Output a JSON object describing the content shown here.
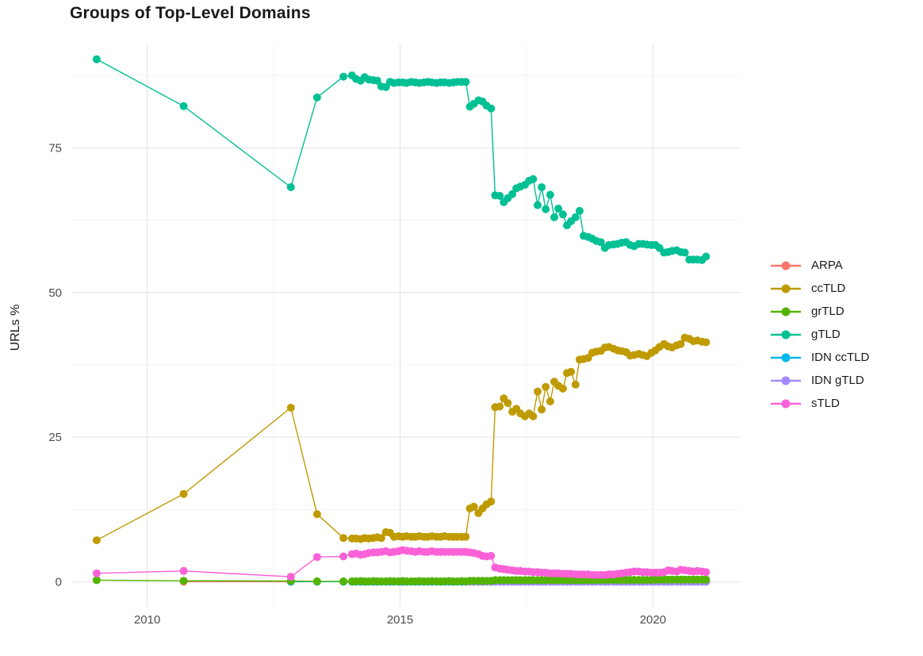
{
  "colors": {
    "background": "#FFFFFF",
    "grid_major": "#E8E8E8",
    "grid_minor": "#F3F3F3",
    "title_text": "#1A1A1A",
    "axis_text": "#4D4D4D",
    "legend_text": "#1A1A1A"
  },
  "chart_data": {
    "type": "line",
    "title": "Groups of Top-Level Domains",
    "xlabel": "",
    "ylabel": "URLs %",
    "xlim": [
      2008.5,
      2021.75
    ],
    "ylim": [
      -4.3,
      93
    ],
    "x_ticks": [
      2010,
      2015,
      2020
    ],
    "y_ticks": [
      0,
      25,
      50,
      75
    ],
    "x_minor": [
      2012.5,
      2017.5
    ],
    "y_minor": [
      12.5,
      37.5,
      62.5,
      87.5
    ],
    "grid": true,
    "legend_position": "right",
    "draw_order": [
      "ARPA",
      "IDN ccTLD",
      "IDN gTLD",
      "grTLD",
      "ccTLD",
      "gTLD",
      "sTLD"
    ],
    "x_common": [
      2009.0,
      2010.72,
      2012.84,
      2013.36,
      2013.88,
      2014.05,
      2014.13,
      2014.22,
      2014.3,
      2014.38,
      2014.47,
      2014.55,
      2014.63,
      2014.72,
      2014.8,
      2014.88,
      2014.97,
      2015.05,
      2015.13,
      2015.22,
      2015.3,
      2015.38,
      2015.47,
      2015.55,
      2015.63,
      2015.72,
      2015.8,
      2015.88,
      2015.97,
      2016.05,
      2016.13,
      2016.22,
      2016.3,
      2016.38,
      2016.46,
      2016.55,
      2016.63,
      2016.71,
      2016.8,
      2016.88,
      2016.97,
      2017.05,
      2017.13,
      2017.22,
      2017.3,
      2017.38,
      2017.47,
      2017.55,
      2017.63,
      2017.72,
      2017.8,
      2017.88,
      2017.97,
      2018.05,
      2018.13,
      2018.22,
      2018.3,
      2018.38,
      2018.47,
      2018.55,
      2018.63,
      2018.72,
      2018.8,
      2018.88,
      2018.97,
      2019.05,
      2019.13,
      2019.22,
      2019.3,
      2019.38,
      2019.47,
      2019.55,
      2019.63,
      2019.72,
      2019.8,
      2019.88,
      2019.97,
      2020.05,
      2020.13,
      2020.22,
      2020.3,
      2020.38,
      2020.47,
      2020.55,
      2020.63,
      2020.72,
      2020.8,
      2020.88,
      2020.97,
      2021.05
    ],
    "series": [
      {
        "name": "ARPA",
        "id": "arpa",
        "color": "#F8766D",
        "x_start_index": 1,
        "y_const": 0.05
      },
      {
        "name": "ccTLD",
        "id": "cctld",
        "color": "#BF9B00",
        "x_start_index": 0,
        "y": [
          7.2,
          15.2,
          30.1,
          11.7,
          7.6,
          7.5,
          7.5,
          7.4,
          7.6,
          7.5,
          7.6,
          7.7,
          7.6,
          8.6,
          8.5,
          7.8,
          7.9,
          7.8,
          7.9,
          7.8,
          7.8,
          7.9,
          7.8,
          7.8,
          7.9,
          7.8,
          7.8,
          7.9,
          7.8,
          7.8,
          7.8,
          7.8,
          7.8,
          12.7,
          13.0,
          11.9,
          12.7,
          13.4,
          13.9,
          30.2,
          30.3,
          31.7,
          30.9,
          29.4,
          29.9,
          29.1,
          28.6,
          29.1,
          28.6,
          32.9,
          29.8,
          33.7,
          31.2,
          34.6,
          33.9,
          33.4,
          36.1,
          36.3,
          34.1,
          38.4,
          38.5,
          38.7,
          39.6,
          39.8,
          39.9,
          40.5,
          40.6,
          40.3,
          40.0,
          39.9,
          39.7,
          39.1,
          39.2,
          39.4,
          39.2,
          39.0,
          39.6,
          40.0,
          40.6,
          41.1,
          40.7,
          40.5,
          40.9,
          41.1,
          42.2,
          42.0,
          41.6,
          41.7,
          41.5,
          41.4
        ]
      },
      {
        "name": "grTLD",
        "id": "grtld",
        "color": "#53B400",
        "x_start_index": 0,
        "y": [
          0.3,
          0.2,
          0.15,
          0.1,
          0.1,
          0.1,
          0.1,
          0.15,
          0.1,
          0.1,
          0.15,
          0.1,
          0.1,
          0.1,
          0.15,
          0.1,
          0.1,
          0.15,
          0.1,
          0.1,
          0.1,
          0.15,
          0.1,
          0.1,
          0.15,
          0.1,
          0.1,
          0.1,
          0.15,
          0.1,
          0.1,
          0.15,
          0.1,
          0.2,
          0.2,
          0.2,
          0.2,
          0.2,
          0.2,
          0.3,
          0.3,
          0.3,
          0.3,
          0.3,
          0.3,
          0.3,
          0.3,
          0.3,
          0.3,
          0.3,
          0.3,
          0.3,
          0.3,
          0.3,
          0.3,
          0.3,
          0.3,
          0.3,
          0.3,
          0.3,
          0.3,
          0.3,
          0.3,
          0.3,
          0.35,
          0.35,
          0.35,
          0.35,
          0.35,
          0.35,
          0.35,
          0.35,
          0.35,
          0.35,
          0.35,
          0.35,
          0.35,
          0.4,
          0.4,
          0.4,
          0.4,
          0.4,
          0.4,
          0.4,
          0.4,
          0.4,
          0.4,
          0.4,
          0.4,
          0.4
        ]
      },
      {
        "name": "gTLD",
        "id": "gtld",
        "color": "#00C094",
        "x_start_index": 0,
        "y": [
          90.3,
          82.2,
          68.2,
          83.7,
          87.3,
          87.5,
          86.9,
          86.6,
          87.2,
          86.8,
          86.7,
          86.6,
          85.6,
          85.5,
          86.4,
          86.2,
          86.3,
          86.3,
          86.2,
          86.4,
          86.3,
          86.2,
          86.3,
          86.4,
          86.3,
          86.2,
          86.3,
          86.3,
          86.2,
          86.3,
          86.4,
          86.4,
          86.4,
          82.1,
          82.6,
          83.2,
          83.0,
          82.3,
          81.8,
          66.8,
          66.7,
          65.6,
          66.3,
          67.0,
          68.0,
          68.3,
          68.6,
          69.3,
          69.6,
          65.1,
          68.2,
          64.4,
          66.9,
          63.0,
          64.5,
          63.5,
          61.6,
          62.3,
          63.0,
          64.1,
          59.8,
          59.6,
          59.3,
          58.9,
          58.7,
          57.7,
          58.2,
          58.3,
          58.4,
          58.6,
          58.7,
          58.2,
          58.0,
          58.4,
          58.4,
          58.3,
          58.2,
          58.2,
          57.7,
          56.9,
          57.0,
          57.2,
          57.3,
          57.0,
          56.9,
          55.7,
          55.7,
          55.7,
          55.6,
          56.2
        ]
      },
      {
        "name": "IDN ccTLD",
        "id": "idn-cctld",
        "color": "#00B6EB",
        "x_start_index": 2,
        "y_const": 0.05
      },
      {
        "name": "IDN gTLD",
        "id": "idn-gtld",
        "color": "#A58AFF",
        "x_start_index": 32,
        "y_const": 0.05
      },
      {
        "name": "sTLD",
        "id": "stld",
        "color": "#FB61D7",
        "x_start_index": 0,
        "y": [
          1.5,
          1.9,
          0.9,
          4.3,
          4.4,
          4.8,
          4.9,
          4.7,
          4.8,
          5.0,
          5.1,
          5.1,
          5.2,
          5.3,
          5.1,
          5.2,
          5.3,
          5.5,
          5.4,
          5.3,
          5.2,
          5.3,
          5.2,
          5.2,
          5.3,
          5.2,
          5.2,
          5.2,
          5.2,
          5.2,
          5.2,
          5.2,
          5.2,
          5.1,
          5.0,
          4.8,
          4.5,
          4.4,
          4.5,
          2.5,
          2.3,
          2.2,
          2.1,
          2.0,
          1.9,
          1.9,
          1.8,
          1.8,
          1.7,
          1.7,
          1.6,
          1.6,
          1.5,
          1.5,
          1.5,
          1.4,
          1.4,
          1.4,
          1.3,
          1.3,
          1.3,
          1.3,
          1.2,
          1.2,
          1.2,
          1.2,
          1.3,
          1.3,
          1.4,
          1.5,
          1.6,
          1.7,
          1.8,
          1.8,
          1.7,
          1.7,
          1.6,
          1.6,
          1.6,
          1.7,
          2.0,
          1.9,
          1.8,
          2.1,
          2.0,
          1.9,
          1.8,
          1.9,
          1.8,
          1.7
        ]
      }
    ]
  }
}
